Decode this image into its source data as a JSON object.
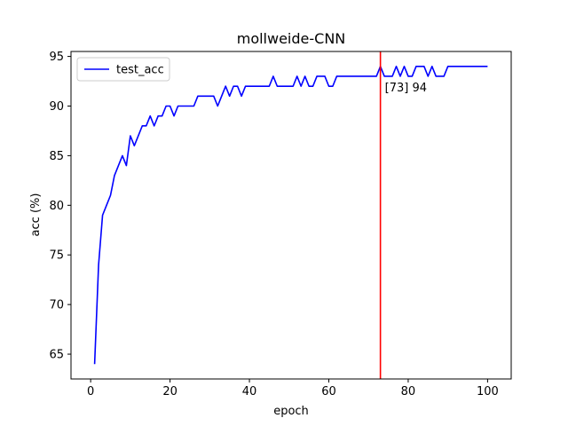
{
  "chart_data": {
    "type": "line",
    "title": "mollweide-CNN",
    "xlabel": "epoch",
    "ylabel": "acc (%)",
    "xlim": [
      -4.95,
      105.95
    ],
    "ylim": [
      62.5,
      95.5
    ],
    "xticks": [
      0,
      20,
      40,
      60,
      80,
      100
    ],
    "yticks": [
      65,
      70,
      75,
      80,
      85,
      90,
      95
    ],
    "grid": false,
    "legend": "upper left",
    "series": [
      {
        "name": "test_acc",
        "color": "#0000ff",
        "x": [
          1,
          2,
          3,
          4,
          5,
          6,
          7,
          8,
          9,
          10,
          11,
          12,
          13,
          14,
          15,
          16,
          17,
          18,
          19,
          20,
          21,
          22,
          23,
          24,
          25,
          26,
          27,
          28,
          29,
          30,
          31,
          32,
          33,
          34,
          35,
          36,
          37,
          38,
          39,
          40,
          41,
          42,
          43,
          44,
          45,
          46,
          47,
          48,
          49,
          50,
          51,
          52,
          53,
          54,
          55,
          56,
          57,
          58,
          59,
          60,
          61,
          62,
          63,
          64,
          65,
          66,
          67,
          68,
          69,
          70,
          71,
          72,
          73,
          74,
          75,
          76,
          77,
          78,
          79,
          80,
          81,
          82,
          83,
          84,
          85,
          86,
          87,
          88,
          89,
          90,
          91,
          92,
          93,
          94,
          95,
          96,
          97,
          98,
          99,
          100
        ],
        "values": [
          64,
          74,
          79,
          80,
          81,
          83,
          84,
          85,
          84,
          87,
          86,
          87,
          88,
          88,
          89,
          88,
          89,
          89,
          90,
          90,
          89,
          90,
          90,
          90,
          90,
          90,
          91,
          91,
          91,
          91,
          91,
          90,
          91,
          92,
          91,
          92,
          92,
          91,
          92,
          92,
          92,
          92,
          92,
          92,
          92,
          93,
          92,
          92,
          92,
          92,
          92,
          93,
          92,
          93,
          92,
          92,
          93,
          93,
          93,
          92,
          92,
          93,
          93,
          93,
          93,
          93,
          93,
          93,
          93,
          93,
          93,
          93,
          94,
          93,
          93,
          93,
          94,
          93,
          94,
          93,
          93,
          94,
          94,
          94,
          93,
          94,
          93,
          93,
          93,
          94,
          94,
          94,
          94,
          94,
          94,
          94,
          94,
          94,
          94,
          94
        ]
      }
    ],
    "vline": {
      "x": 73,
      "color": "#ff0000"
    },
    "annotation": {
      "text": "[73] 94",
      "x": 73,
      "y": 94
    }
  }
}
